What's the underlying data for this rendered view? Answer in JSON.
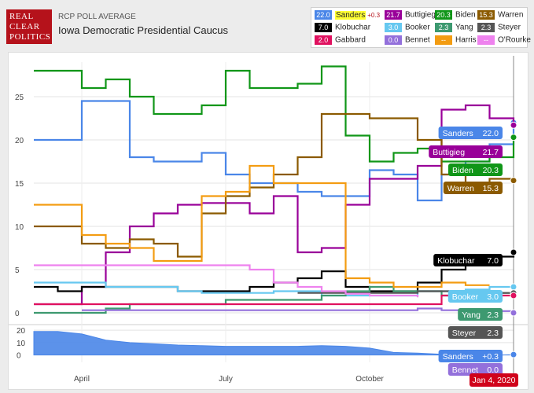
{
  "header": {
    "logo_lines": [
      "REAL",
      "CLEAR",
      "POLITICS"
    ],
    "subtitle": "RCP POLL AVERAGE",
    "title": "Iowa Democratic Presidential Caucus"
  },
  "legend": [
    {
      "value": "22.0",
      "name": "Sanders",
      "change": "+0.3",
      "color": "#4a86e8",
      "highlight": true
    },
    {
      "value": "21.7",
      "name": "Buttigieg",
      "color": "#990099"
    },
    {
      "value": "20.3",
      "name": "Biden",
      "color": "#109618"
    },
    {
      "value": "15.3",
      "name": "Warren",
      "color": "#8b5a00"
    },
    {
      "value": "7.0",
      "name": "Klobuchar",
      "color": "#000000"
    },
    {
      "value": "3.0",
      "name": "Booker",
      "color": "#66c8f0"
    },
    {
      "value": "2.3",
      "name": "Yang",
      "color": "#3d9970"
    },
    {
      "value": "2.3",
      "name": "Steyer",
      "color": "#555555"
    },
    {
      "value": "2.0",
      "name": "Gabbard",
      "color": "#e0115f"
    },
    {
      "value": "0.0",
      "name": "Bennet",
      "color": "#9370db"
    },
    {
      "value": "--",
      "name": "Harris",
      "color": "#f39c12"
    },
    {
      "value": "--",
      "name": "O'Rourke",
      "color": "#ee82ee"
    }
  ],
  "chart_data": [
    {
      "type": "line",
      "x": [
        "Mar 1",
        "Mar 15",
        "Apr 1",
        "Apr 15",
        "May 1",
        "May 15",
        "Jun 1",
        "Jun 15",
        "Jul 1",
        "Jul 15",
        "Aug 1",
        "Aug 15",
        "Sep 1",
        "Sep 15",
        "Oct 1",
        "Oct 15",
        "Nov 1",
        "Nov 15",
        "Dec 1",
        "Dec 15",
        "Jan 4"
      ],
      "x_ticks": [
        "April",
        "July",
        "October"
      ],
      "y_ticks": [
        "0",
        "5",
        "10",
        "15",
        "20",
        "25"
      ],
      "ylim": [
        -1,
        29
      ],
      "grid": true,
      "series": [
        {
          "name": "Sanders",
          "color": "#4a86e8",
          "values": [
            20,
            20,
            24.5,
            24.5,
            18,
            17.5,
            17.5,
            18.5,
            16,
            15,
            15,
            14,
            13.5,
            13.5,
            16.5,
            16,
            13,
            16,
            17.5,
            19.5,
            22
          ]
        },
        {
          "name": "Buttigieg",
          "color": "#990099",
          "values": [
            1,
            1,
            3,
            7,
            10,
            11.5,
            12.5,
            12.7,
            12.7,
            11.5,
            13.5,
            7,
            7.5,
            12.5,
            15.5,
            15.5,
            17,
            23.5,
            24,
            22.5,
            21.7
          ]
        },
        {
          "name": "Biden",
          "color": "#109618",
          "values": [
            28,
            28,
            26,
            27,
            25,
            23,
            23,
            24,
            28,
            26,
            26,
            26.5,
            28.5,
            20.5,
            17.5,
            18.5,
            19,
            17.5,
            17.5,
            18,
            20.3
          ]
        },
        {
          "name": "Warren",
          "color": "#8b5a00",
          "values": [
            10,
            10,
            8,
            7.5,
            8.5,
            8,
            6.5,
            11.5,
            13.5,
            14.5,
            16,
            18,
            23,
            23,
            22.5,
            22.5,
            20,
            16,
            15,
            15.5,
            15.3
          ]
        },
        {
          "name": "Klobuchar",
          "color": "#000000",
          "values": [
            3,
            2.5,
            3,
            3,
            3,
            3,
            2.5,
            2.5,
            2.5,
            3,
            3.5,
            4,
            4.8,
            3,
            2.5,
            2.5,
            3.5,
            5,
            6,
            6.5,
            7
          ]
        },
        {
          "name": "Booker",
          "color": "#66c8f0",
          "values": [
            3.5,
            3.5,
            3.5,
            3,
            3,
            3,
            2.5,
            2.3,
            2.3,
            2.3,
            2.5,
            2.5,
            2,
            2,
            2,
            2,
            2.5,
            2.5,
            2.7,
            3,
            3
          ]
        },
        {
          "name": "Yang",
          "color": "#3d9970",
          "values": [
            0,
            0,
            0,
            0.5,
            1,
            1,
            1,
            1,
            1.5,
            1.5,
            1.5,
            1.5,
            2,
            2.5,
            3,
            2.5,
            2.5,
            2,
            2,
            2.3,
            2.3
          ]
        },
        {
          "name": "Steyer",
          "color": "#555555",
          "values": [
            null,
            null,
            null,
            null,
            null,
            null,
            null,
            null,
            null,
            null,
            null,
            2.3,
            2.3,
            2.3,
            2.3,
            2.3,
            2.5,
            2.5,
            2.5,
            2.3,
            2.3
          ]
        },
        {
          "name": "Gabbard",
          "color": "#e0115f",
          "values": [
            1,
            1,
            1,
            1,
            1,
            1,
            1,
            1,
            1,
            1,
            1,
            1,
            1,
            1,
            1,
            1,
            1,
            2,
            2,
            2,
            2
          ]
        },
        {
          "name": "Bennet",
          "color": "#9370db",
          "values": [
            null,
            null,
            0.3,
            0.3,
            0.3,
            0.3,
            0.3,
            0.3,
            0.3,
            0.3,
            0.3,
            0.3,
            0.3,
            0.3,
            0.3,
            0.3,
            0.5,
            0.3,
            0.3,
            0.2,
            0
          ]
        },
        {
          "name": "Harris",
          "color": "#f39c12",
          "values": [
            12.5,
            12.5,
            9,
            8,
            7.5,
            6,
            6,
            13.5,
            14,
            17,
            15,
            15,
            15,
            4,
            3.5,
            3,
            3,
            3.5,
            3.2,
            3.2,
            null
          ]
        },
        {
          "name": "O'Rourke",
          "color": "#ee82ee",
          "values": [
            5.5,
            5.5,
            5.5,
            5.5,
            5.5,
            5.5,
            5.5,
            5.5,
            5.5,
            5,
            3.5,
            3,
            2.5,
            2.2,
            2,
            2,
            1.8,
            null,
            null,
            null,
            null
          ]
        }
      ],
      "end_labels": [
        {
          "name": "Sanders",
          "value": "22.0",
          "color": "#4a86e8"
        },
        {
          "name": "Buttigieg",
          "value": "21.7",
          "color": "#990099"
        },
        {
          "name": "Biden",
          "value": "20.3",
          "color": "#109618"
        },
        {
          "name": "Warren",
          "value": "15.3",
          "color": "#8b5a00"
        },
        {
          "name": "Klobuchar",
          "value": "7.0",
          "color": "#000000"
        },
        {
          "name": "Booker",
          "value": "3.0",
          "color": "#66c8f0"
        },
        {
          "name": "Yang",
          "value": "2.3",
          "color": "#3d9970"
        },
        {
          "name": "Steyer",
          "value": "2.3",
          "color": "#555555"
        }
      ]
    },
    {
      "type": "area",
      "x": [
        "Mar 1",
        "Mar 15",
        "Apr 1",
        "Apr 15",
        "May 1",
        "May 15",
        "Jun 1",
        "Jun 15",
        "Jul 1",
        "Jul 15",
        "Aug 1",
        "Aug 15",
        "Sep 1",
        "Sep 15",
        "Oct 1",
        "Oct 15",
        "Nov 1",
        "Nov 15",
        "Dec 1",
        "Dec 15",
        "Jan 4"
      ],
      "y_ticks": [
        "0",
        "10",
        "20"
      ],
      "ylim": [
        -6,
        22
      ],
      "series": [
        {
          "name": "Sanders",
          "color": "#4a86e8",
          "values": [
            19,
            19,
            17,
            12,
            10,
            9,
            8,
            7.5,
            7,
            7,
            7,
            7,
            7.5,
            7,
            5.5,
            2,
            1.5,
            0.5,
            -1,
            -0.5,
            0.3
          ]
        }
      ],
      "end_labels": [
        {
          "name": "Sanders",
          "value": "+0.3",
          "color": "#4a86e8"
        },
        {
          "name": "Bennet",
          "value": "0.0",
          "color": "#9370db"
        }
      ],
      "date_label": "Jan 4, 2020"
    }
  ]
}
